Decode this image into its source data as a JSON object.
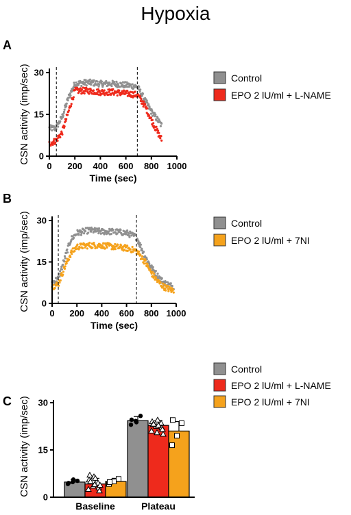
{
  "title": "Hypoxia",
  "chart_data": [
    {
      "panel": "A",
      "type": "scatter",
      "xlabel": "Time (sec)",
      "ylabel": "CSN activity (imp/sec)",
      "xlim": [
        0,
        1000
      ],
      "ylim": [
        0,
        30
      ],
      "xticks": [
        "0",
        "200",
        "400",
        "600",
        "800",
        "1000"
      ],
      "yticks": [
        "0",
        "15",
        "30"
      ],
      "vlines": [
        55,
        690
      ],
      "legend": [
        "Control",
        "EPO 2 lU/ml + L-NAME"
      ],
      "colors": [
        "#909090",
        "#ee2a1c"
      ],
      "series": [
        {
          "name": "Control",
          "x": [
            0,
            50,
            100,
            150,
            200,
            300,
            400,
            500,
            600,
            690,
            750,
            800,
            850,
            880
          ],
          "y": [
            10,
            10,
            14,
            21,
            26,
            26.5,
            26,
            26,
            25.5,
            25,
            20,
            16,
            13,
            11
          ]
        },
        {
          "name": "EPO 2 lU/ml + L-NAME",
          "x": [
            0,
            50,
            100,
            150,
            200,
            300,
            400,
            500,
            600,
            690,
            750,
            800,
            850,
            880
          ],
          "y": [
            4.5,
            5.5,
            8.5,
            16,
            23.5,
            23.5,
            23,
            23,
            22.5,
            22,
            18,
            13,
            8.5,
            6
          ]
        }
      ]
    },
    {
      "panel": "B",
      "type": "scatter",
      "xlabel": "Time (sec)",
      "ylabel": "CSN activity (imp/sec)",
      "xlim": [
        0,
        1000
      ],
      "ylim": [
        0,
        30
      ],
      "xticks": [
        "0",
        "200",
        "400",
        "600",
        "800",
        "1000"
      ],
      "yticks": [
        "0",
        "15",
        "30"
      ],
      "vlines": [
        50,
        680
      ],
      "legend": [
        "Control",
        "EPO 2 lU/ml + 7NI"
      ],
      "colors": [
        "#909090",
        "#f5a21c"
      ],
      "series": [
        {
          "name": "Control",
          "x": [
            0,
            50,
            100,
            150,
            200,
            300,
            400,
            500,
            600,
            680,
            750,
            800,
            850,
            900,
            980
          ],
          "y": [
            7.5,
            9,
            16,
            23,
            25.5,
            26.5,
            26,
            26,
            25.5,
            24,
            17,
            13,
            10,
            7.5,
            6
          ]
        },
        {
          "name": "EPO 2 lU/ml + 7NI",
          "x": [
            0,
            50,
            100,
            150,
            200,
            300,
            400,
            500,
            600,
            680,
            750,
            800,
            850,
            900,
            980
          ],
          "y": [
            6,
            7,
            13,
            18,
            20.5,
            21,
            21,
            20.5,
            20,
            19,
            15,
            11,
            8,
            6,
            4.5
          ]
        }
      ]
    },
    {
      "panel": "C",
      "type": "bar",
      "ylabel": "CSN activity (imp/sec)",
      "ylim": [
        0,
        30
      ],
      "yticks": [
        "0",
        "15",
        "30"
      ],
      "categories": [
        "Baseline",
        "Plateau"
      ],
      "legend": [
        "Control",
        "EPO 2 lU/ml + L-NAME",
        "EPO 2 lU/ml + 7NI"
      ],
      "colors": [
        "#909090",
        "#ee2a1c",
        "#f5a21c"
      ],
      "series": [
        {
          "name": "Control",
          "values": [
            4.8,
            24.3
          ],
          "errors": [
            0.8,
            1.3
          ],
          "points": [
            [
              4.2,
              4.8,
              5.2,
              4.5,
              5.6
            ],
            [
              23.0,
              24.2,
              25.8,
              24.6,
              23.8
            ]
          ],
          "marker": "circle"
        },
        {
          "name": "EPO 2 lU/ml + L-NAME",
          "values": [
            4.2,
            22.8
          ],
          "errors": [
            1.8,
            1.5
          ],
          "points": [
            [
              2.5,
              3.5,
              4.5,
              5.5,
              6.5,
              3.0,
              7.0,
              4.0,
              2.0,
              5.0,
              6.0,
              3.8
            ],
            [
              21.0,
              22.5,
              23.5,
              24.0,
              20.5,
              22.0,
              23.0,
              24.5,
              21.5,
              23.2,
              22.8,
              20.0
            ]
          ],
          "marker": "triangle"
        },
        {
          "name": "EPO 2 lU/ml + 7NI",
          "values": [
            5.0,
            21.0
          ],
          "errors": [
            1.0,
            3.0
          ],
          "points": [
            [
              4.2,
              5.0,
              5.8,
              4.8
            ],
            [
              16.5,
              19.5,
              23.5,
              24.5
            ]
          ],
          "marker": "square"
        }
      ]
    }
  ]
}
